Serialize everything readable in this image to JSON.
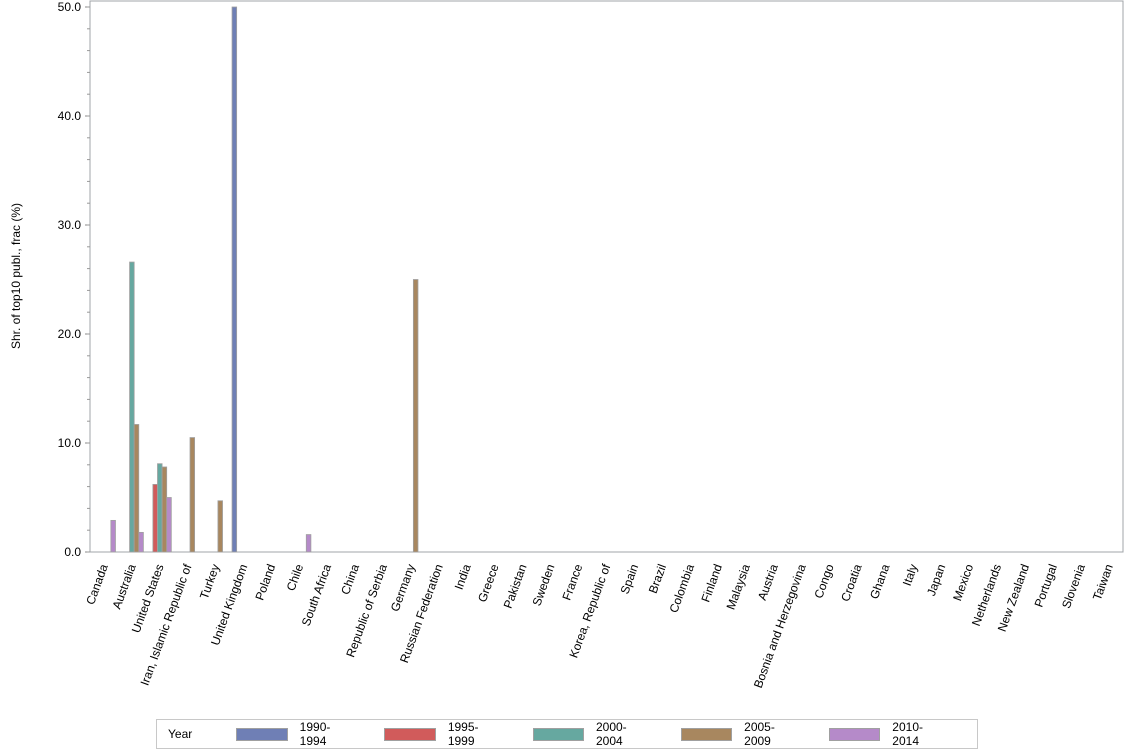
{
  "chart_data": {
    "type": "bar",
    "title": "",
    "xlabel": "",
    "ylabel": "Shr. of top10 publ., frac (%)",
    "ylim": [
      0,
      50
    ],
    "yticks": [
      "0.0",
      "10.0",
      "20.0",
      "30.0",
      "40.0",
      "50.0"
    ],
    "grid": false,
    "legend_title": "Year",
    "legend_position": "bottom",
    "categories": [
      "Canada",
      "Australia",
      "United States",
      "Iran, Islamic Republic of",
      "Turkey",
      "United Kingdom",
      "Poland",
      "Chile",
      "South Africa",
      "China",
      "Republic of Serbia",
      "Germany",
      "Russian Federation",
      "India",
      "Greece",
      "Pakistan",
      "Sweden",
      "France",
      "Korea, Republic of",
      "Spain",
      "Brazil",
      "Colombia",
      "Finland",
      "Malaysia",
      "Austria",
      "Bosnia and Herzegovina",
      "Congo",
      "Croatia",
      "Ghana",
      "Italy",
      "Japan",
      "Mexico",
      "Netherlands",
      "New Zealand",
      "Portugal",
      "Slovenia",
      "Taiwan"
    ],
    "series": [
      {
        "name": "1990-1994",
        "color": "#6f7fb5",
        "values": [
          0,
          0,
          0,
          0,
          0,
          50.0,
          0,
          0,
          0,
          0,
          0,
          0,
          0,
          0,
          0,
          0,
          0,
          0,
          0,
          0,
          0,
          0,
          0,
          0,
          0,
          0,
          0,
          0,
          0,
          0,
          0,
          0,
          0,
          0,
          0,
          0,
          0
        ]
      },
      {
        "name": "1995-1999",
        "color": "#d15b5b",
        "values": [
          0,
          0,
          6.2,
          0,
          0,
          0,
          0,
          0,
          0,
          0,
          0,
          0,
          0,
          0,
          0,
          0,
          0,
          0,
          0,
          0,
          0,
          0,
          0,
          0,
          0,
          0,
          0,
          0,
          0,
          0,
          0,
          0,
          0,
          0,
          0,
          0,
          0
        ]
      },
      {
        "name": "2000-2004",
        "color": "#66a8a0",
        "values": [
          0,
          26.6,
          8.1,
          0,
          0,
          0,
          0,
          0,
          0,
          0,
          0,
          0,
          0,
          0,
          0,
          0,
          0,
          0,
          0,
          0,
          0,
          0,
          0,
          0,
          0,
          0,
          0,
          0,
          0,
          0,
          0,
          0,
          0,
          0,
          0,
          0,
          0
        ]
      },
      {
        "name": "2005-2009",
        "color": "#a8875f",
        "values": [
          0,
          11.7,
          7.8,
          10.5,
          4.7,
          0,
          0,
          0,
          0,
          0,
          0,
          25.0,
          0,
          0,
          0,
          0,
          0,
          0,
          0,
          0,
          0,
          0,
          0,
          0,
          0,
          0,
          0,
          0,
          0,
          0,
          0,
          0,
          0,
          0,
          0,
          0,
          0
        ]
      },
      {
        "name": "2010-2014",
        "color": "#b58ac9",
        "values": [
          2.9,
          1.8,
          5.0,
          0,
          0,
          0,
          0,
          1.6,
          0,
          0,
          0,
          0,
          0,
          0,
          0,
          0,
          0,
          0,
          0,
          0,
          0,
          0,
          0,
          0,
          0,
          0,
          0,
          0,
          0,
          0,
          0,
          0,
          0,
          0,
          0,
          0,
          0
        ]
      }
    ]
  }
}
